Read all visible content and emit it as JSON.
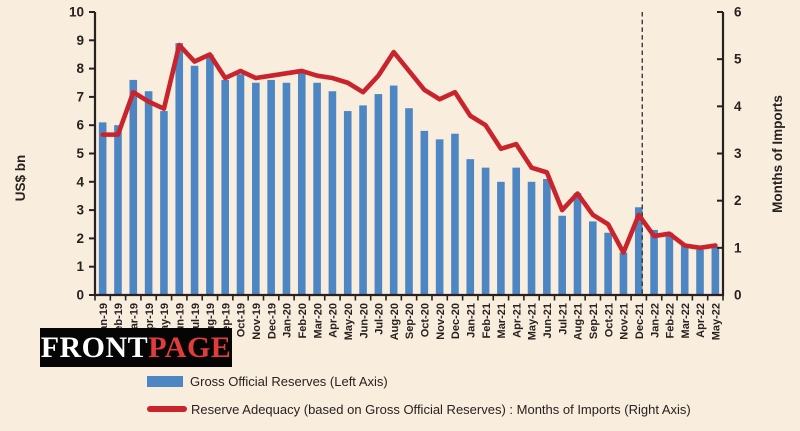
{
  "figure": {
    "background": "#f9edde",
    "ink": "#27221f",
    "dash_line_color": "#3a3a3a"
  },
  "logo": {
    "text_white": "FRONT",
    "text_red": "PAGE",
    "bg": "#050505",
    "red": "#e23b3b"
  },
  "chart_data": {
    "type": "bar",
    "subtype": "combo-bar-line-dual-axis",
    "title": "",
    "grid": false,
    "legend_position": "bottom-left",
    "categories": [
      "Jan-19",
      "Feb-19",
      "Mar-19",
      "Apr-19",
      "May-19",
      "Jun-19",
      "Jul-19",
      "Aug-19",
      "Sep-19",
      "Oct-19",
      "Nov-19",
      "Dec-19",
      "Jan-20",
      "Feb-20",
      "Mar-20",
      "Apr-20",
      "May-20",
      "Jun-20",
      "Jul-20",
      "Aug-20",
      "Sep-20",
      "Oct-20",
      "Nov-20",
      "Dec-20",
      "Jan-21",
      "Feb-21",
      "Mar-21",
      "Apr-21",
      "May-21",
      "Jun-21",
      "Jul-21",
      "Aug-21",
      "Sep-21",
      "Oct-21",
      "Nov-21",
      "Dec-21",
      "Jan-22",
      "Feb-22",
      "Mar-22",
      "Apr-22",
      "May-22"
    ],
    "series": [
      {
        "name": "Gross Official Reserves (Left Axis)",
        "type": "bar",
        "axis": "left",
        "color": "#4d86c3",
        "values": [
          6.1,
          6.0,
          7.6,
          7.2,
          6.5,
          8.9,
          8.1,
          8.5,
          7.6,
          7.8,
          7.5,
          7.6,
          7.5,
          7.9,
          7.5,
          7.2,
          6.5,
          6.7,
          7.1,
          7.4,
          6.6,
          5.8,
          5.5,
          5.7,
          4.8,
          4.5,
          4.0,
          4.5,
          4.0,
          4.1,
          2.8,
          3.6,
          2.6,
          2.2,
          1.5,
          3.1,
          2.3,
          2.2,
          1.8,
          1.6,
          1.7
        ]
      },
      {
        "name": "Reserve Adequacy (based on Gross Official Reserves) : Months of Imports (Right Axis)",
        "type": "line",
        "axis": "right",
        "color": "#c9242b",
        "values": [
          3.4,
          3.4,
          4.3,
          4.1,
          3.95,
          5.3,
          4.95,
          5.1,
          4.6,
          4.75,
          4.6,
          4.65,
          4.7,
          4.75,
          4.65,
          4.6,
          4.5,
          4.3,
          4.65,
          5.15,
          4.75,
          4.35,
          4.15,
          4.3,
          3.8,
          3.6,
          3.1,
          3.2,
          2.7,
          2.6,
          1.8,
          2.15,
          1.7,
          1.5,
          0.9,
          1.7,
          1.25,
          1.3,
          1.05,
          1.0,
          1.05
        ]
      }
    ],
    "left_axis": {
      "title": "US$ bn",
      "min": 0,
      "max": 10,
      "tick_step": 1
    },
    "right_axis": {
      "title": "Months of Imports",
      "min": 0,
      "max": 6,
      "tick_step": 1
    },
    "annotation": {
      "type": "dashed-vertical-line",
      "at_category": "Dec-21"
    }
  }
}
